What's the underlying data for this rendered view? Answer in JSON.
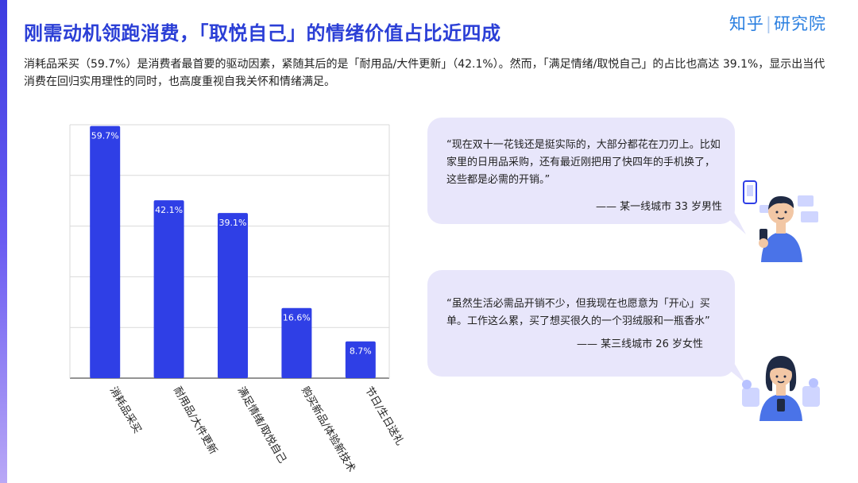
{
  "title": "刚需动机领跑消费，「取悦自己」的情绪价值占比近四成",
  "brand": {
    "left": "知乎",
    "right": "研究院",
    "color": "#2a7fe0"
  },
  "subtitle": "消耗品采买（59.7%）是消费者最首要的驱动因素，紧随其后的是「耐用品/大件更新」（42.1%）。然而，「满足情绪/取悦自己」的占比也高达 39.1%，显示出当代消费在回归实用理性的同时，也高度重视自我关怀和情绪满足。",
  "chart_data": {
    "type": "bar",
    "categories": [
      "消耗品采买",
      "耐用品/大件更新",
      "满足情绪/取悦自己",
      "购买新品/体验新技术",
      "节日/生日送礼"
    ],
    "values": [
      59.7,
      42.1,
      39.1,
      16.6,
      8.7
    ],
    "value_labels": [
      "59.7%",
      "42.1%",
      "39.1%",
      "16.6%",
      "8.7%"
    ],
    "ylim": [
      0,
      60
    ],
    "gridlines": [
      0,
      12,
      24,
      36,
      48,
      60
    ],
    "grid": true,
    "bar_color": "#2f3fe6"
  },
  "quotes": [
    {
      "text": "“现在双十一花钱还是挺实际的，大部分都花在刀刃上。比如家里的日用品采购，还有最近刚把用了快四年的手机换了，这些都是必需的开销。”",
      "attribution": "—— 某一线城市 33 岁男性"
    },
    {
      "text": "“虽然生活必需品开销不少，但我现在也愿意为「开心」买单。工作这么累，买了想买很久的一个羽绒服和一瓶香水”",
      "attribution": "—— 某三线城市 26 岁女性"
    }
  ],
  "colors": {
    "accent": "#2b3fd6",
    "bubble": "#e8e6fb"
  }
}
